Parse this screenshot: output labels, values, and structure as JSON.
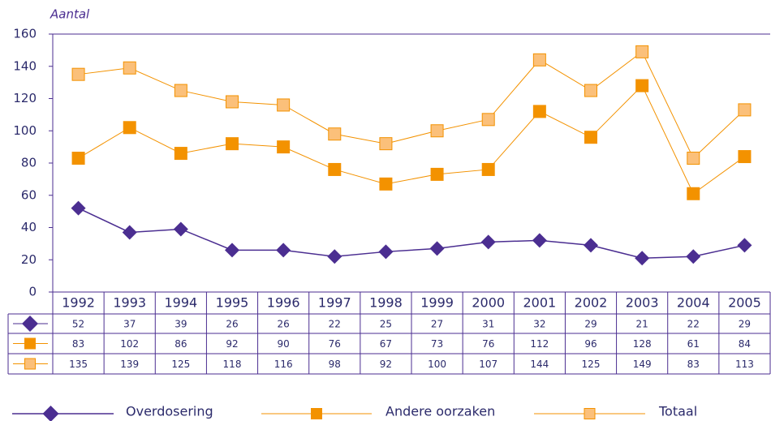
{
  "chart_data": {
    "type": "line",
    "y_label": "Aantal",
    "categories": [
      "1992",
      "1993",
      "1994",
      "1995",
      "1996",
      "1997",
      "1998",
      "1999",
      "2000",
      "2001",
      "2002",
      "2003",
      "2004",
      "2005"
    ],
    "series": [
      {
        "name": "Overdosering",
        "color": "#4b2e91",
        "marker": "diamond",
        "values": [
          52,
          37,
          39,
          26,
          26,
          22,
          25,
          27,
          31,
          32,
          29,
          21,
          22,
          29
        ]
      },
      {
        "name": "Andere oorzaken",
        "color": "#f39200",
        "marker": "square",
        "values": [
          83,
          102,
          86,
          92,
          90,
          76,
          67,
          73,
          76,
          112,
          96,
          128,
          61,
          84
        ]
      },
      {
        "name": "Totaal",
        "color": "#fbc07a",
        "marker": "square",
        "values": [
          135,
          139,
          125,
          118,
          116,
          98,
          92,
          100,
          107,
          144,
          125,
          149,
          83,
          113
        ]
      }
    ],
    "ylim": [
      0,
      160
    ],
    "yticks": [
      0,
      20,
      40,
      60,
      80,
      100,
      120,
      140,
      160
    ],
    "grid": false
  }
}
